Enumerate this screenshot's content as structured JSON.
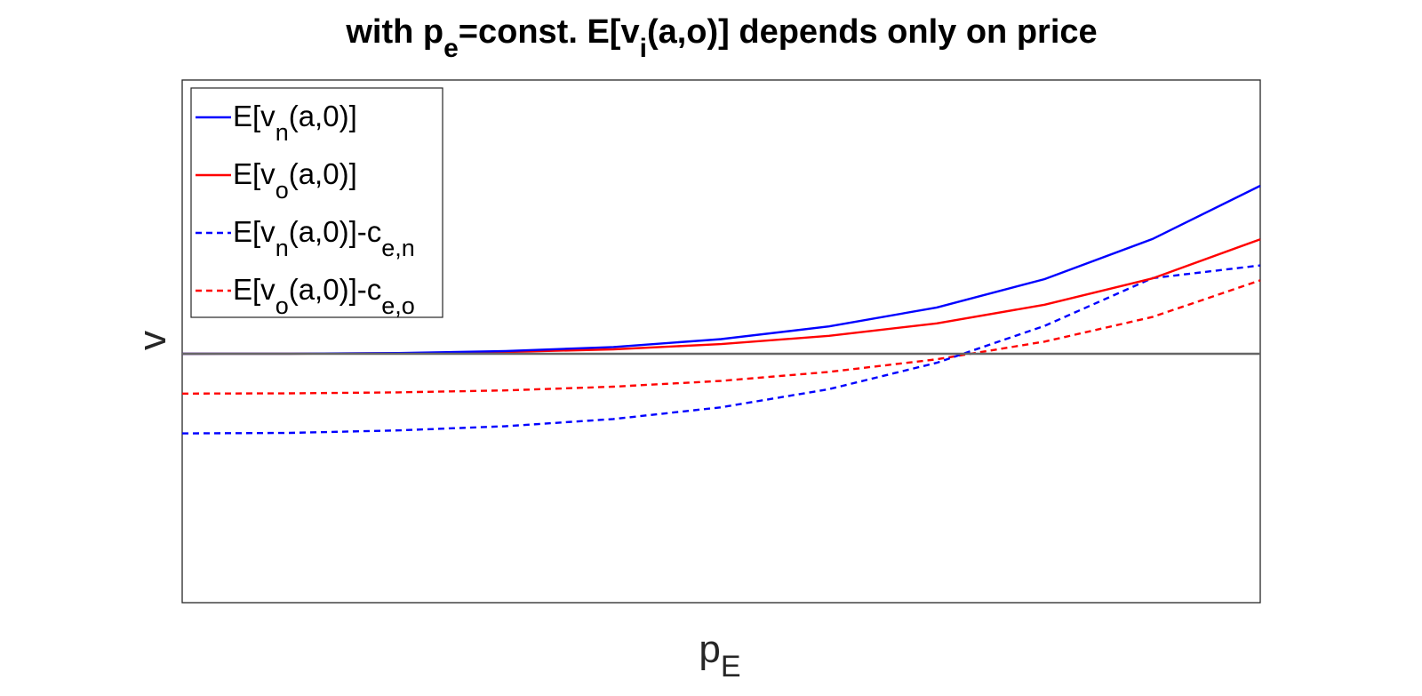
{
  "chart_data": {
    "type": "line",
    "title": {
      "base1": "with p",
      "sub1": "e",
      "base2": "=const. E[v",
      "sub2": "i",
      "base3": "(a,o)] depends only on price"
    },
    "xlabel": {
      "base": "p",
      "sub": "E"
    },
    "ylabel": "v",
    "xlim": [
      0,
      1
    ],
    "ylim": [
      -1,
      1.1
    ],
    "grid": false,
    "legend_position": "top-left",
    "series": [
      {
        "name": {
          "base": "E[v",
          "sub": "n",
          "rest": "(a,0)]",
          "sub2": ""
        },
        "color": "#0000ff",
        "style": "solid",
        "x": [
          0,
          0.1,
          0.2,
          0.3,
          0.4,
          0.5,
          0.6,
          0.7,
          0.8,
          0.9,
          1.0
        ],
        "y": [
          0,
          0.0004,
          0.003,
          0.011,
          0.027,
          0.059,
          0.11,
          0.186,
          0.3,
          0.461,
          0.675
        ]
      },
      {
        "name": {
          "base": "E[v",
          "sub": "o",
          "rest": "(a,0)]",
          "sub2": ""
        },
        "color": "#ff0000",
        "style": "solid",
        "x": [
          0,
          0.1,
          0.2,
          0.3,
          0.4,
          0.5,
          0.6,
          0.7,
          0.8,
          0.9,
          1.0
        ],
        "y": [
          0,
          0.0003,
          0.002,
          0.007,
          0.018,
          0.039,
          0.072,
          0.122,
          0.197,
          0.303,
          0.46
        ]
      },
      {
        "name": {
          "base": "E[v",
          "sub": "n",
          "rest": "(a,0)]-c",
          "sub2": "e,n"
        },
        "color": "#0000ff",
        "style": "dashed",
        "x": [
          0,
          0.1,
          0.2,
          0.3,
          0.4,
          0.5,
          0.6,
          0.7,
          0.8,
          0.9,
          1.0
        ],
        "y": [
          -0.32,
          -0.318,
          -0.308,
          -0.291,
          -0.262,
          -0.215,
          -0.142,
          -0.036,
          0.112,
          0.304,
          0.355
        ]
      },
      {
        "name": {
          "base": "E[v",
          "sub": "o",
          "rest": "(a,0)]-c",
          "sub2": "e,o"
        },
        "color": "#ff0000",
        "style": "dashed",
        "x": [
          0,
          0.1,
          0.2,
          0.3,
          0.4,
          0.5,
          0.6,
          0.7,
          0.8,
          0.9,
          1.0
        ],
        "y": [
          -0.16,
          -0.159,
          -0.155,
          -0.147,
          -0.132,
          -0.109,
          -0.073,
          -0.022,
          0.049,
          0.148,
          0.295
        ]
      }
    ],
    "reference_line": {
      "y": 0,
      "color": "#666666"
    }
  }
}
